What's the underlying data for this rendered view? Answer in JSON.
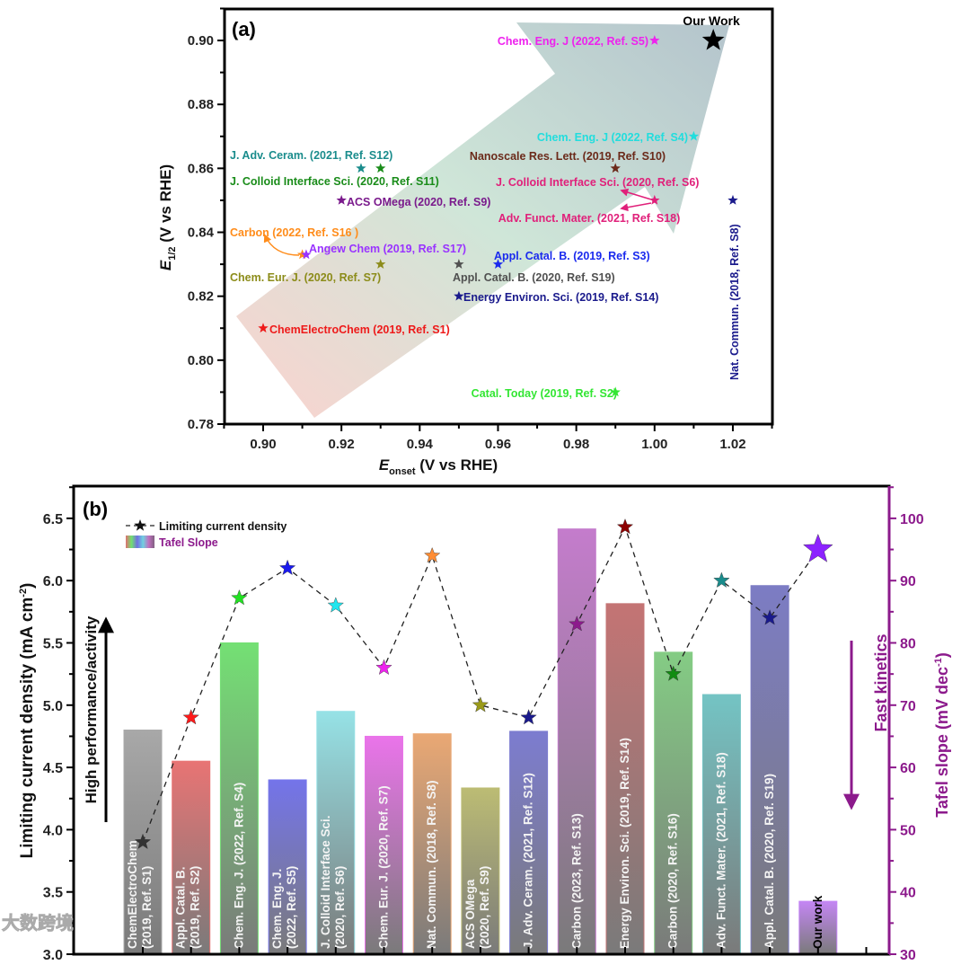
{
  "chart_data": [
    {
      "type": "scatter",
      "panel_label": "(a)",
      "xlabel_main": "E",
      "xlabel_sub": "onset",
      "xlabel_rest": " (V vs RHE)",
      "ylabel_main": "E",
      "ylabel_sub": "1/2",
      "ylabel_rest": " (V vs RHE)",
      "xlim": [
        0.89,
        1.03
      ],
      "ylim": [
        0.78,
        0.91
      ],
      "xticks": [
        "0.90",
        "0.92",
        "0.94",
        "0.96",
        "0.98",
        "1.00",
        "1.02"
      ],
      "yticks": [
        "0.78",
        "0.80",
        "0.82",
        "0.84",
        "0.86",
        "0.88",
        "0.90"
      ],
      "points": [
        {
          "label": "Our Work",
          "x": 1.015,
          "y": 0.9,
          "color": "#000000"
        },
        {
          "label": "Chem. Eng. J (2022, Ref. S5)",
          "x": 1.0,
          "y": 0.9,
          "color": "#ee22ee"
        },
        {
          "label": "Chem. Eng. J (2022, Ref. S4)",
          "x": 1.01,
          "y": 0.87,
          "color": "#22dddd"
        },
        {
          "label": "Nanoscale Res. Lett. (2019, Ref. S10)",
          "x": 0.99,
          "y": 0.86,
          "color": "#6b2a1a"
        },
        {
          "label": "J. Colloid Interface Sci. (2020, Ref. S6)",
          "x": 1.0,
          "y": 0.85,
          "color": "#e0207a"
        },
        {
          "label": "Adv. Funct. Mater. (2021, Ref. S18)",
          "x": 1.0,
          "y": 0.85,
          "color": "#e0207a"
        },
        {
          "label": "Nat. Commun. (2018, Ref. S8)",
          "x": 1.02,
          "y": 0.85,
          "color": "#1a1a8c"
        },
        {
          "label": "Appl. Catal. B. (2019, Ref. S3)",
          "x": 0.96,
          "y": 0.83,
          "color": "#1a2aee"
        },
        {
          "label": "Appl. Catal. B. (2020, Ref. S19)",
          "x": 0.95,
          "y": 0.83,
          "color": "#505050"
        },
        {
          "label": "Energy Environ. Sci. (2019, Ref. S14)",
          "x": 0.95,
          "y": 0.82,
          "color": "#1a1a8c"
        },
        {
          "label": "Catal. Today (2019, Ref. S2)",
          "x": 0.99,
          "y": 0.79,
          "color": "#33e633"
        },
        {
          "label": "ChemElectroChem (2019, Ref. S1)",
          "x": 0.9,
          "y": 0.81,
          "color": "#ee1a1a"
        },
        {
          "label": "J. Adv. Ceram. (2021, Ref. S12)",
          "x": 0.925,
          "y": 0.86,
          "color": "#1a8c8c"
        },
        {
          "label": "J. Colloid Interface Sci. (2020, Ref. S11)",
          "x": 0.93,
          "y": 0.86,
          "color": "#1a8c1a"
        },
        {
          "label": "ACS OMega (2020, Ref. S9)",
          "x": 0.92,
          "y": 0.85,
          "color": "#7a1a8c"
        },
        {
          "label": "Carbon (2022, Ref. S16 )",
          "x": 0.91,
          "y": 0.833,
          "color": "#ff8c1a"
        },
        {
          "label": "Angew Chem (2019, Ref. S17)",
          "x": 0.911,
          "y": 0.833,
          "color": "#9933ff"
        },
        {
          "label": "Chem. Eur. J. (2020, Ref. S7)",
          "x": 0.93,
          "y": 0.83,
          "color": "#8c8c1a"
        }
      ]
    },
    {
      "type": "bar",
      "panel_label": "(b)",
      "ylabel": "Limiting current density (mA cm",
      "ylabel_sup": "-2",
      "ylabel_end": ")",
      "y2label": "Tafel slope (mV dec",
      "y2label_sup": "-1",
      "y2label_end": ")",
      "ylim": [
        3.0,
        6.7
      ],
      "y2lim": [
        30,
        105
      ],
      "yticks": [
        "3.0",
        "3.5",
        "4.0",
        "4.5",
        "5.0",
        "5.5",
        "6.0",
        "6.5"
      ],
      "y2ticks": [
        "30",
        "40",
        "50",
        "60",
        "70",
        "80",
        "90",
        "100"
      ],
      "legend": {
        "line": "Limiting current density",
        "bars": "Tafel Slope"
      },
      "left_annotation": "High performance/activity",
      "right_annotation": "Fast kinetics",
      "categories": [
        [
          "ChemElectroChem",
          "(2019, Ref. S1)"
        ],
        [
          "Appl. Catal. B.",
          "(2019, Ref. S2)"
        ],
        [
          "Chem. Eng. J. (2022, Ref. S4)"
        ],
        [
          "Chem. Eng. J.",
          "(2022, Ref. S5)"
        ],
        [
          "J. Colloid Interface Sci.",
          "(2020, Ref. S6)"
        ],
        [
          "Chem. Eur. J. (2020, Ref. S7)"
        ],
        [
          "Nat. Commun. (2018, Ref. S8)"
        ],
        [
          "ACS OMega",
          "(2020, Ref. S9)"
        ],
        [
          "J. Adv. Ceram. (2021, Ref. S12)"
        ],
        [
          "Carbon (2023, Ref. S13)"
        ],
        [
          "Energy Environ. Sci. (2019, Ref. S14)"
        ],
        [
          "Carbon (2020, Ref. S16)"
        ],
        [
          "Adv. Funct. Mater. (2021, Ref. S18)"
        ],
        [
          "Appl. Catal. B. (2020, Ref. S19)"
        ],
        [
          "Our work"
        ]
      ],
      "series": [
        {
          "name": "Tafel Slope",
          "axis": "right",
          "values": [
            66,
            61,
            80,
            58,
            69,
            65,
            65.4,
            56.7,
            65.8,
            98.3,
            86.3,
            78.5,
            71.7,
            89.2,
            38.5
          ],
          "colors": [
            "#a8a8a8",
            "#e87474",
            "#74e074",
            "#7474ea",
            "#96e2e6",
            "#ea74ea",
            "#eaa874",
            "#bcbc74",
            "#7c7cd0",
            "#c47ccc",
            "#c47474",
            "#84cc84",
            "#74c4c4",
            "#7c7cc4",
            "#c486f4"
          ]
        },
        {
          "name": "Limiting current density",
          "axis": "left",
          "values": [
            3.9,
            4.9,
            5.86,
            6.1,
            5.8,
            5.3,
            6.2,
            5.0,
            4.9,
            5.65,
            6.43,
            5.25,
            6.0,
            5.7,
            6.25
          ],
          "colors": [
            "#333333",
            "#ff1a1a",
            "#22e022",
            "#1a1aee",
            "#22e6ee",
            "#ee22ee",
            "#ff8c33",
            "#9a9a1a",
            "#1a1a8c",
            "#8c1a8c",
            "#8c0000",
            "#118c11",
            "#1a8c8c",
            "#1a1a8c",
            "#8c22ff"
          ]
        }
      ]
    }
  ],
  "watermark": "大数跨境"
}
